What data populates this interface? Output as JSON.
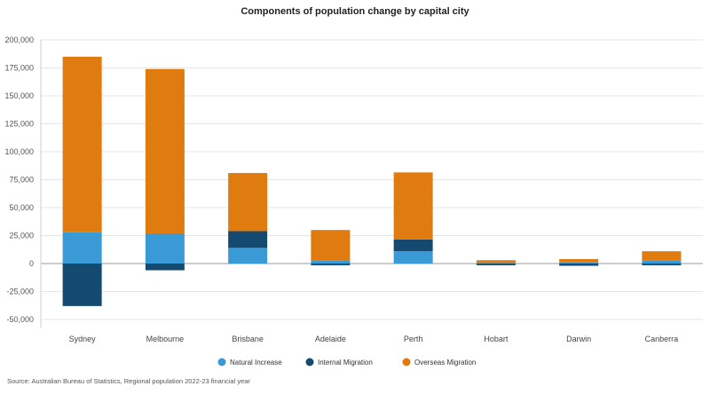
{
  "chart_data": {
    "type": "bar",
    "stacked": true,
    "title": "Components of population change by capital city",
    "categories": [
      "Sydney",
      "Melbourne",
      "Brisbane",
      "Adelaide",
      "Perth",
      "Hobart",
      "Darwin",
      "Canberra"
    ],
    "series": [
      {
        "name": "Natural Increase",
        "color": "#3a9ad6",
        "values": [
          28000,
          27000,
          14000,
          3000,
          11000,
          500,
          1000,
          2500
        ]
      },
      {
        "name": "Internal Migration",
        "color": "#144a70",
        "values": [
          -38000,
          -6000,
          15000,
          -1500,
          10500,
          -1500,
          -2000,
          -1500
        ]
      },
      {
        "name": "Overseas Migration",
        "color": "#e07b10",
        "values": [
          157000,
          147000,
          52000,
          27000,
          60000,
          2500,
          3000,
          8500
        ]
      }
    ],
    "ylim": [
      -50000,
      200000
    ],
    "yticks": [
      -50000,
      -25000,
      0,
      25000,
      50000,
      75000,
      100000,
      125000,
      150000,
      175000,
      200000
    ],
    "ytick_labels": [
      "-50,000",
      "-25,000",
      "0",
      "25,000",
      "50,000",
      "75,000",
      "100,000",
      "125,000",
      "150,000",
      "175,000",
      "200,000"
    ],
    "grid": true,
    "legend_position": "bottom",
    "source": "Source: Australian Bureau of Statistics, Regional population 2022-23 financial year"
  }
}
